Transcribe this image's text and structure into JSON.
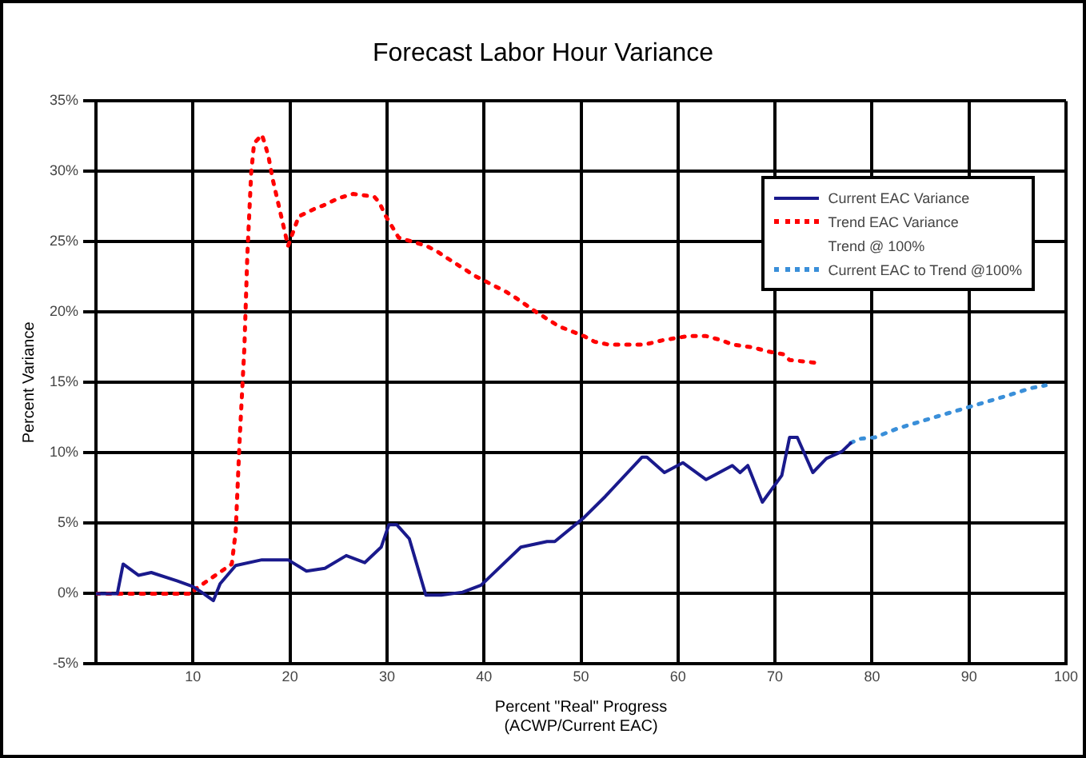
{
  "chart_data": {
    "type": "line",
    "title": "Forecast Labor Hour Variance",
    "xlabel": "Percent \"Real\" Progress\n(ACWP/Current EAC)",
    "ylabel": "Percent Variance",
    "xlim": [
      0,
      100
    ],
    "xticks": [
      {
        "value": 0,
        "label": null
      },
      10,
      20,
      30,
      40,
      50,
      60,
      70,
      80,
      90,
      100
    ],
    "ylim": [
      -5,
      35
    ],
    "yticks": [
      {
        "value": -5,
        "label": "-5%"
      },
      {
        "value": 0,
        "label": "0%"
      },
      {
        "value": 5,
        "label": "5%"
      },
      {
        "value": 10,
        "label": "10%"
      },
      {
        "value": 15,
        "label": "15%"
      },
      {
        "value": 20,
        "label": "20%"
      },
      {
        "value": 25,
        "label": "25%"
      },
      {
        "value": 30,
        "label": "30%"
      },
      {
        "value": 35,
        "label": "35%"
      }
    ],
    "grid": true,
    "legend": "top right",
    "marker": "none",
    "series": [
      {
        "name": "Current EAC Variance",
        "color": "#1a1a8c",
        "line_style": "solid",
        "x": [
          0,
          2.2,
          2.8,
          4.4,
          5.7,
          8.4,
          10,
          11.1,
          12.1,
          12.8,
          14.4,
          17.1,
          19.8,
          21.7,
          23.6,
          25.8,
          27.7,
          29.4,
          30.2,
          31,
          32.3,
          34,
          35.6,
          37.8,
          39.7,
          43.8,
          46.5,
          47.3,
          50.3,
          52.5,
          56.3,
          56.8,
          58.6,
          60.5,
          62.9,
          65.6,
          66.4,
          67.2,
          68.7,
          70.7,
          71.5,
          72.3,
          73.9,
          75.3,
          76.9,
          77.8
        ],
        "values": [
          0,
          0,
          2.1,
          1.3,
          1.5,
          0.9,
          0.5,
          0,
          -0.5,
          0.7,
          2,
          2.4,
          2.4,
          1.6,
          1.8,
          2.7,
          2.2,
          3.3,
          4.9,
          4.9,
          3.9,
          -0.1,
          -0.1,
          0.1,
          0.6,
          3.3,
          3.7,
          3.7,
          5.4,
          6.9,
          9.7,
          9.7,
          8.6,
          9.3,
          8.1,
          9.1,
          8.6,
          9.1,
          6.5,
          8.4,
          11.1,
          11.1,
          8.6,
          9.6,
          10.1,
          10.7
        ]
      },
      {
        "name": "Trend EAC Variance",
        "color": "#ff0000",
        "line_style": "dotted",
        "x": [
          0,
          10,
          10.2,
          14,
          14.4,
          14.8,
          15.3,
          15.6,
          16,
          16.3,
          17.1,
          17.4,
          17.8,
          18.2,
          18.6,
          19.8,
          20.9,
          22.7,
          23.5,
          25,
          26.5,
          28.7,
          29.2,
          29.9,
          31.2,
          34.1,
          35.2,
          36.3,
          37.2,
          37.9,
          39,
          42.4,
          43.1,
          45.4,
          46.8,
          47.7,
          50.3,
          51.4,
          52.8,
          56.6,
          58.4,
          61,
          62.9,
          64.5,
          65.6,
          67.7,
          69.3,
          70.9,
          71.5,
          74.2,
          74.8
        ],
        "values": [
          0,
          0,
          0.3,
          2.1,
          4.4,
          10.8,
          17.5,
          24,
          29.9,
          32,
          32.6,
          32,
          31,
          29.5,
          28.3,
          24.7,
          26.8,
          27.4,
          27.6,
          28.1,
          28.4,
          28.2,
          27.8,
          26.8,
          25.3,
          24.7,
          24.3,
          23.8,
          23.4,
          23.1,
          22.6,
          21.4,
          21.1,
          20,
          19.4,
          19,
          18.3,
          17.9,
          17.7,
          17.7,
          18,
          18.3,
          18.3,
          18,
          17.7,
          17.5,
          17.2,
          17,
          16.6,
          16.4,
          16.4
        ]
      },
      {
        "name": "Trend @ 100%"
      },
      {
        "name": "Current EAC to Trend @100%",
        "color": "#3a8fd9",
        "line_style": "dotted",
        "x": [
          77.8,
          78.7,
          80.3,
          82.5,
          83.9,
          86.3,
          94.1,
          96.4,
          97.9
        ],
        "values": [
          10.7,
          11,
          11.1,
          11.7,
          12,
          12.5,
          14.1,
          14.6,
          14.8
        ]
      }
    ]
  }
}
